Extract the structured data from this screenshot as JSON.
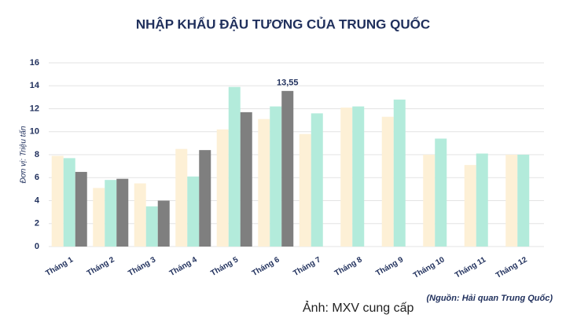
{
  "chart_data": {
    "type": "bar",
    "title": "NHẬP KHẨU ĐẬU TƯƠNG CỦA TRUNG QUỐC",
    "y_label": "Đơn vị: Triệu tấn",
    "source": "(Nguồn: Hải quan Trung Quốc)",
    "caption": "Ảnh: MXV cung cấp",
    "categories": [
      "Tháng 1",
      "Tháng 2",
      "Tháng 3",
      "Tháng 4",
      "Tháng 5",
      "Tháng 6",
      "Tháng 7",
      "Tháng 8",
      "Tháng 9",
      "Tháng 10",
      "Tháng 11",
      "Tháng 12"
    ],
    "series": [
      {
        "color": "#fdf0d6",
        "values": [
          7.9,
          5.1,
          5.5,
          8.5,
          10.2,
          11.1,
          9.8,
          12.1,
          11.3,
          8.0,
          7.1,
          8.0
        ]
      },
      {
        "color": "#b3ebdb",
        "values": [
          7.7,
          5.8,
          3.5,
          6.1,
          13.9,
          12.2,
          11.6,
          12.2,
          12.8,
          9.4,
          8.1,
          8.0
        ]
      },
      {
        "color": "#7f7f7f",
        "values": [
          6.5,
          5.9,
          4.0,
          8.4,
          11.7,
          13.55,
          null,
          null,
          null,
          null,
          null,
          null
        ],
        "value_labels": [
          null,
          null,
          null,
          null,
          null,
          "13,55",
          null,
          null,
          null,
          null,
          null,
          null
        ]
      }
    ],
    "ylim": [
      0,
      16
    ],
    "yticks": [
      0,
      2,
      4,
      6,
      8,
      10,
      12,
      14,
      16
    ],
    "grid": true
  }
}
